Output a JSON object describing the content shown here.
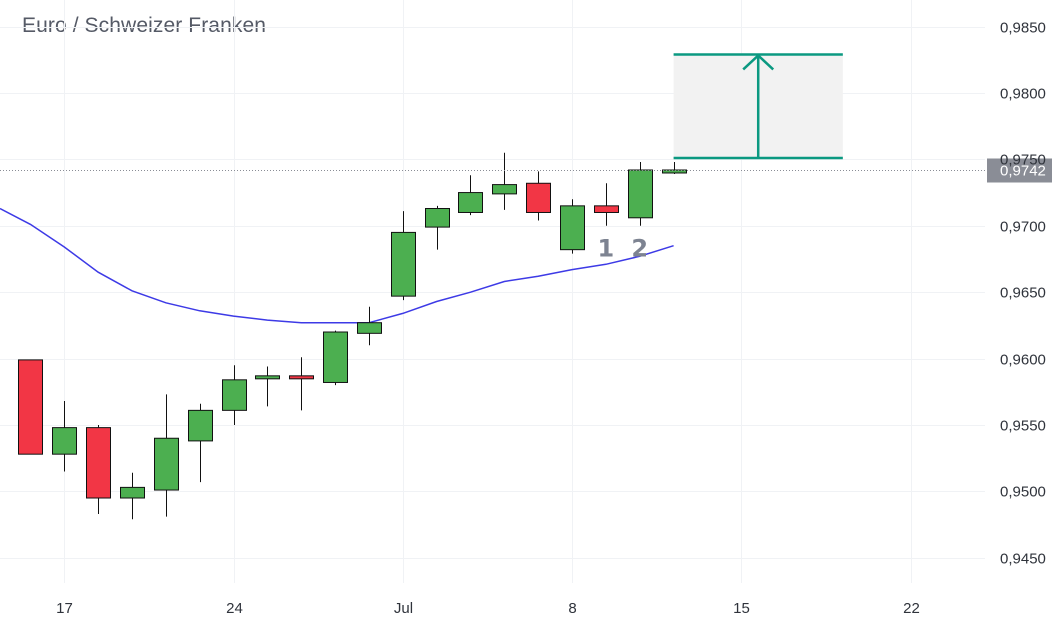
{
  "chart_data": {
    "type": "candlestick",
    "title": "Euro / Schweizer Franken",
    "y_ticks": [
      "0,9850",
      "0,9800",
      "0,9750",
      "0,9700",
      "0,9650",
      "0,9600",
      "0,9550",
      "0,9500",
      "0,9450"
    ],
    "ylim": [
      0.9431,
      0.987
    ],
    "x_ticks": [
      {
        "label": "17",
        "index": 1
      },
      {
        "label": "24",
        "index": 6
      },
      {
        "label": "Jul",
        "index": 11
      },
      {
        "label": "8",
        "index": 16
      },
      {
        "label": "15",
        "index": 21
      },
      {
        "label": "22",
        "index": 26
      }
    ],
    "x_range": [
      -0.9,
      28.2
    ],
    "grid": true,
    "current_price": {
      "value": 0.9742,
      "label": "0,9742"
    },
    "colors": {
      "up": "#4caf50",
      "down": "#f23645",
      "ma": "#3d3ae6",
      "target": "#0b9981",
      "target_fill": "#f2f2f2",
      "price_label_bg": "#8a8d96"
    },
    "candles": [
      {
        "i": 0,
        "o": 0.9599,
        "h": 0.9599,
        "l": 0.9528,
        "c": 0.9528
      },
      {
        "i": 1,
        "o": 0.9528,
        "h": 0.9568,
        "l": 0.9515,
        "c": 0.9548
      },
      {
        "i": 2,
        "o": 0.9548,
        "h": 0.955,
        "l": 0.9483,
        "c": 0.9495
      },
      {
        "i": 3,
        "o": 0.9495,
        "h": 0.9514,
        "l": 0.9479,
        "c": 0.9503
      },
      {
        "i": 4,
        "o": 0.9501,
        "h": 0.9573,
        "l": 0.9481,
        "c": 0.954
      },
      {
        "i": 5,
        "o": 0.9538,
        "h": 0.9566,
        "l": 0.9507,
        "c": 0.9561
      },
      {
        "i": 6,
        "o": 0.9561,
        "h": 0.9595,
        "l": 0.955,
        "c": 0.9584
      },
      {
        "i": 7,
        "o": 0.9587,
        "h": 0.9594,
        "l": 0.9564,
        "c": 0.9587
      },
      {
        "i": 8,
        "o": 0.9587,
        "h": 0.9601,
        "l": 0.9561,
        "c": 0.9585
      },
      {
        "i": 9,
        "o": 0.9582,
        "h": 0.9621,
        "l": 0.958,
        "c": 0.962
      },
      {
        "i": 10,
        "o": 0.9619,
        "h": 0.9639,
        "l": 0.961,
        "c": 0.9627
      },
      {
        "i": 11,
        "o": 0.9647,
        "h": 0.9711,
        "l": 0.9644,
        "c": 0.9695
      },
      {
        "i": 12,
        "o": 0.9699,
        "h": 0.9715,
        "l": 0.9682,
        "c": 0.9713
      },
      {
        "i": 13,
        "o": 0.971,
        "h": 0.9738,
        "l": 0.9708,
        "c": 0.9725
      },
      {
        "i": 14,
        "o": 0.9724,
        "h": 0.9755,
        "l": 0.9712,
        "c": 0.9731
      },
      {
        "i": 15,
        "o": 0.9732,
        "h": 0.9741,
        "l": 0.9704,
        "c": 0.971
      },
      {
        "i": 16,
        "o": 0.9682,
        "h": 0.972,
        "l": 0.9679,
        "c": 0.9715
      },
      {
        "i": 17,
        "o": 0.9715,
        "h": 0.9732,
        "l": 0.97,
        "c": 0.971
      },
      {
        "i": 18,
        "o": 0.9706,
        "h": 0.9748,
        "l": 0.97,
        "c": 0.9742
      },
      {
        "i": 19,
        "o": 0.974,
        "h": 0.9748,
        "l": 0.9739,
        "c": 0.9742
      }
    ],
    "ma_line": [
      {
        "x": -0.9,
        "y": 0.9713
      },
      {
        "x": 0,
        "y": 0.9701
      },
      {
        "x": 1,
        "y": 0.9684
      },
      {
        "x": 2,
        "y": 0.9665
      },
      {
        "x": 3,
        "y": 0.9651
      },
      {
        "x": 4,
        "y": 0.9642
      },
      {
        "x": 5,
        "y": 0.9636
      },
      {
        "x": 6,
        "y": 0.9632
      },
      {
        "x": 7,
        "y": 0.9629
      },
      {
        "x": 8,
        "y": 0.9627
      },
      {
        "x": 9,
        "y": 0.9627
      },
      {
        "x": 10,
        "y": 0.9627
      },
      {
        "x": 11,
        "y": 0.9634
      },
      {
        "x": 12,
        "y": 0.9643
      },
      {
        "x": 13,
        "y": 0.965
      },
      {
        "x": 14,
        "y": 0.9658
      },
      {
        "x": 15,
        "y": 0.9662
      },
      {
        "x": 16,
        "y": 0.9667
      },
      {
        "x": 17,
        "y": 0.9671
      },
      {
        "x": 18,
        "y": 0.9677
      },
      {
        "x": 19,
        "y": 0.9685
      }
    ],
    "target_box": {
      "x0": 19,
      "x1": 24,
      "y_low": 0.9751,
      "y_high": 0.9829
    },
    "annotations": [
      {
        "text": "1",
        "x": 17,
        "y": 0.9692
      },
      {
        "text": "2",
        "x": 18,
        "y": 0.9692
      }
    ]
  }
}
